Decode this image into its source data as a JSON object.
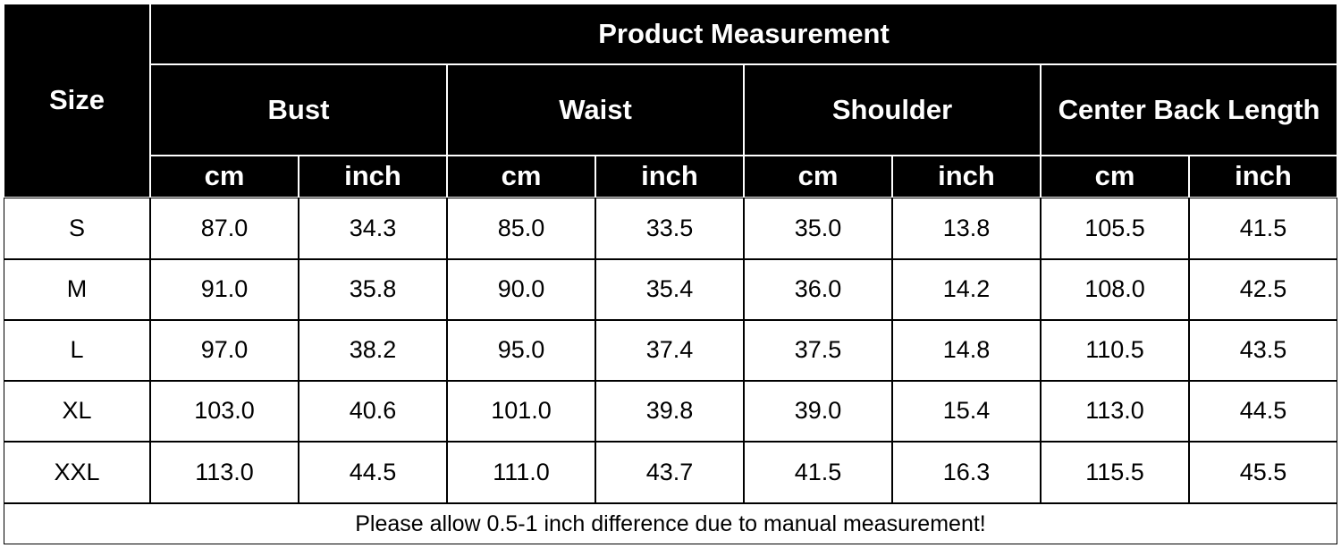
{
  "header": {
    "size_label": "Size",
    "group_title": "Product Measurement",
    "measures": [
      "Bust",
      "Waist",
      "Shoulder",
      "Center Back Length"
    ],
    "units": [
      "cm",
      "inch",
      "cm",
      "inch",
      "cm",
      "inch",
      "cm",
      "inch"
    ]
  },
  "table": {
    "rows": [
      [
        "S",
        "87.0",
        "34.3",
        "85.0",
        "33.5",
        "35.0",
        "13.8",
        "105.5",
        "41.5"
      ],
      [
        "M",
        "91.0",
        "35.8",
        "90.0",
        "35.4",
        "36.0",
        "14.2",
        "108.0",
        "42.5"
      ],
      [
        "L",
        "97.0",
        "38.2",
        "95.0",
        "37.4",
        "37.5",
        "14.8",
        "110.5",
        "43.5"
      ],
      [
        "XL",
        "103.0",
        "40.6",
        "101.0",
        "39.8",
        "39.0",
        "15.4",
        "113.0",
        "44.5"
      ],
      [
        "XXL",
        "113.0",
        "44.5",
        "111.0",
        "43.7",
        "41.5",
        "16.3",
        "115.5",
        "45.5"
      ]
    ]
  },
  "footer": "Please allow 0.5-1 inch difference due to manual measurement!"
}
